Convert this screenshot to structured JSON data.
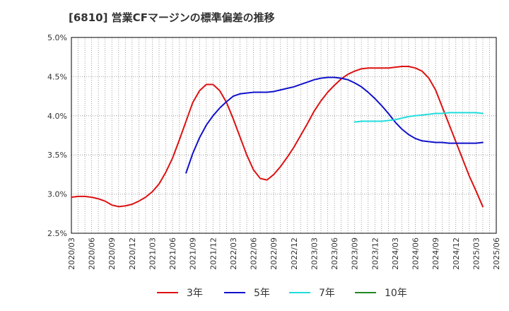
{
  "chart_data": {
    "type": "line",
    "title": "[6810]  営業CFマージンの標準偏差の推移",
    "xlabel": "",
    "ylabel": "",
    "ylim": [
      2.5,
      5.0
    ],
    "y_ticks": [
      "2.5%",
      "3.0%",
      "3.5%",
      "4.0%",
      "4.5%",
      "5.0%"
    ],
    "x_ticks": [
      "2020/03",
      "2020/06",
      "2020/09",
      "2020/12",
      "2021/03",
      "2021/06",
      "2021/09",
      "2021/12",
      "2022/03",
      "2022/06",
      "2022/09",
      "2022/12",
      "2023/03",
      "2023/06",
      "2023/09",
      "2023/12",
      "2024/03",
      "2024/06",
      "2024/09",
      "2024/12",
      "2025/03",
      "2025/06"
    ],
    "grid": true,
    "legend_position": "bottom",
    "series": [
      {
        "name": "3年",
        "color": "#dd1111",
        "points": [
          [
            "2020/03",
            2.96
          ],
          [
            "2020/04",
            2.97
          ],
          [
            "2020/05",
            2.97
          ],
          [
            "2020/06",
            2.96
          ],
          [
            "2020/07",
            2.94
          ],
          [
            "2020/08",
            2.91
          ],
          [
            "2020/09",
            2.86
          ],
          [
            "2020/10",
            2.84
          ],
          [
            "2020/11",
            2.85
          ],
          [
            "2020/12",
            2.87
          ],
          [
            "2021/01",
            2.91
          ],
          [
            "2021/02",
            2.96
          ],
          [
            "2021/03",
            3.03
          ],
          [
            "2021/04",
            3.13
          ],
          [
            "2021/05",
            3.28
          ],
          [
            "2021/06",
            3.46
          ],
          [
            "2021/07",
            3.69
          ],
          [
            "2021/08",
            3.93
          ],
          [
            "2021/09",
            4.17
          ],
          [
            "2021/10",
            4.32
          ],
          [
            "2021/11",
            4.4
          ],
          [
            "2021/12",
            4.4
          ],
          [
            "2022/01",
            4.32
          ],
          [
            "2022/02",
            4.17
          ],
          [
            "2022/03",
            3.96
          ],
          [
            "2022/04",
            3.73
          ],
          [
            "2022/05",
            3.5
          ],
          [
            "2022/06",
            3.31
          ],
          [
            "2022/07",
            3.2
          ],
          [
            "2022/08",
            3.18
          ],
          [
            "2022/09",
            3.25
          ],
          [
            "2022/10",
            3.35
          ],
          [
            "2022/11",
            3.47
          ],
          [
            "2022/12",
            3.6
          ],
          [
            "2023/01",
            3.75
          ],
          [
            "2023/02",
            3.9
          ],
          [
            "2023/03",
            4.06
          ],
          [
            "2023/04",
            4.19
          ],
          [
            "2023/05",
            4.3
          ],
          [
            "2023/06",
            4.39
          ],
          [
            "2023/07",
            4.47
          ],
          [
            "2023/08",
            4.53
          ],
          [
            "2023/09",
            4.57
          ],
          [
            "2023/10",
            4.6
          ],
          [
            "2023/11",
            4.61
          ],
          [
            "2023/12",
            4.61
          ],
          [
            "2024/01",
            4.61
          ],
          [
            "2024/02",
            4.61
          ],
          [
            "2024/03",
            4.62
          ],
          [
            "2024/04",
            4.63
          ],
          [
            "2024/05",
            4.63
          ],
          [
            "2024/06",
            4.61
          ],
          [
            "2024/07",
            4.57
          ],
          [
            "2024/08",
            4.48
          ],
          [
            "2024/09",
            4.33
          ],
          [
            "2024/10",
            4.11
          ],
          [
            "2024/11",
            3.89
          ],
          [
            "2024/12",
            3.67
          ],
          [
            "2025/01",
            3.45
          ],
          [
            "2025/02",
            3.23
          ],
          [
            "2025/03",
            3.04
          ],
          [
            "2025/04",
            2.84
          ]
        ]
      },
      {
        "name": "5年",
        "color": "#1111cc",
        "points": [
          [
            "2021/08",
            3.27
          ],
          [
            "2021/09",
            3.52
          ],
          [
            "2021/10",
            3.72
          ],
          [
            "2021/11",
            3.88
          ],
          [
            "2021/12",
            4.0
          ],
          [
            "2022/01",
            4.1
          ],
          [
            "2022/02",
            4.18
          ],
          [
            "2022/03",
            4.25
          ],
          [
            "2022/04",
            4.28
          ],
          [
            "2022/05",
            4.29
          ],
          [
            "2022/06",
            4.3
          ],
          [
            "2022/07",
            4.3
          ],
          [
            "2022/08",
            4.3
          ],
          [
            "2022/09",
            4.31
          ],
          [
            "2022/10",
            4.33
          ],
          [
            "2022/11",
            4.35
          ],
          [
            "2022/12",
            4.37
          ],
          [
            "2023/01",
            4.4
          ],
          [
            "2023/02",
            4.43
          ],
          [
            "2023/03",
            4.46
          ],
          [
            "2023/04",
            4.48
          ],
          [
            "2023/05",
            4.49
          ],
          [
            "2023/06",
            4.49
          ],
          [
            "2023/07",
            4.48
          ],
          [
            "2023/08",
            4.46
          ],
          [
            "2023/09",
            4.42
          ],
          [
            "2023/10",
            4.37
          ],
          [
            "2023/11",
            4.3
          ],
          [
            "2023/12",
            4.22
          ],
          [
            "2024/01",
            4.13
          ],
          [
            "2024/02",
            4.03
          ],
          [
            "2024/03",
            3.92
          ],
          [
            "2024/04",
            3.83
          ],
          [
            "2024/05",
            3.76
          ],
          [
            "2024/06",
            3.71
          ],
          [
            "2024/07",
            3.68
          ],
          [
            "2024/08",
            3.67
          ],
          [
            "2024/09",
            3.66
          ],
          [
            "2024/10",
            3.66
          ],
          [
            "2024/11",
            3.65
          ],
          [
            "2024/12",
            3.65
          ],
          [
            "2025/01",
            3.65
          ],
          [
            "2025/02",
            3.65
          ],
          [
            "2025/03",
            3.65
          ],
          [
            "2025/04",
            3.66
          ]
        ]
      },
      {
        "name": "7年",
        "color": "#22dddd",
        "points": [
          [
            "2023/09",
            3.92
          ],
          [
            "2023/10",
            3.93
          ],
          [
            "2023/11",
            3.93
          ],
          [
            "2023/12",
            3.93
          ],
          [
            "2024/01",
            3.93
          ],
          [
            "2024/02",
            3.94
          ],
          [
            "2024/03",
            3.95
          ],
          [
            "2024/04",
            3.97
          ],
          [
            "2024/05",
            3.99
          ],
          [
            "2024/06",
            4.0
          ],
          [
            "2024/07",
            4.01
          ],
          [
            "2024/08",
            4.02
          ],
          [
            "2024/09",
            4.03
          ],
          [
            "2024/10",
            4.03
          ],
          [
            "2024/11",
            4.04
          ],
          [
            "2024/12",
            4.04
          ],
          [
            "2025/01",
            4.04
          ],
          [
            "2025/02",
            4.04
          ],
          [
            "2025/03",
            4.04
          ],
          [
            "2025/04",
            4.03
          ]
        ]
      },
      {
        "name": "10年",
        "color": "#228822",
        "points": []
      }
    ]
  }
}
